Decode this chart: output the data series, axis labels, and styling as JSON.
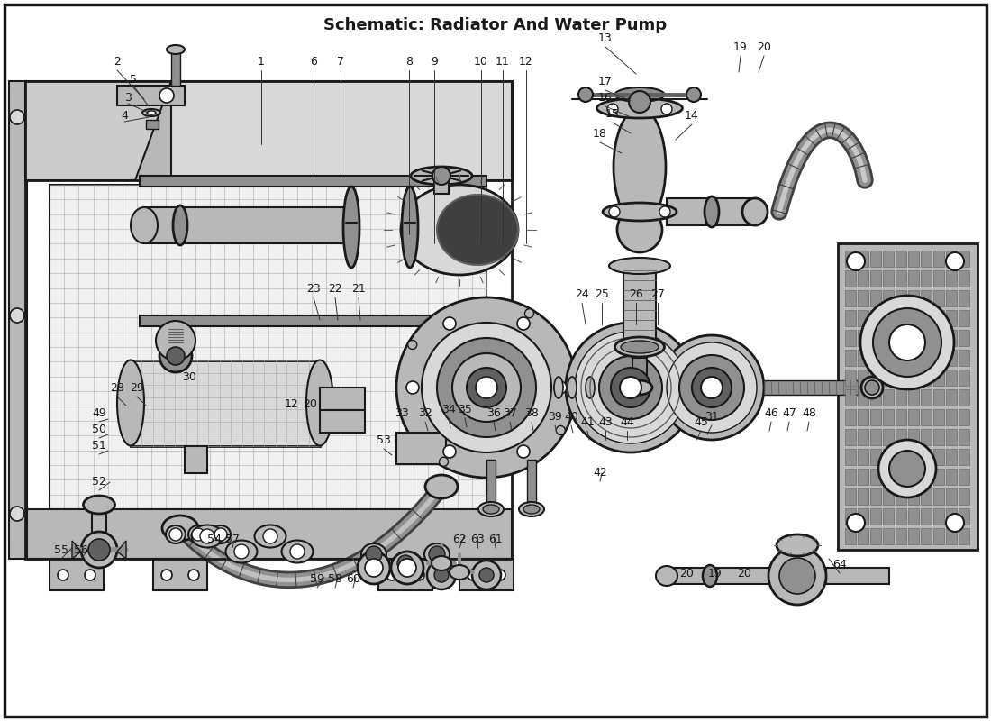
{
  "title": "Schematic: Radiator And Water Pump",
  "bg": "#ffffff",
  "lc": "#1a1a1a",
  "figsize": [
    11.0,
    8.0
  ],
  "dpi": 100,
  "labels": [
    [
      "2",
      130,
      68
    ],
    [
      "5",
      148,
      88
    ],
    [
      "3",
      142,
      108
    ],
    [
      "4",
      138,
      128
    ],
    [
      "1",
      290,
      68
    ],
    [
      "6",
      348,
      68
    ],
    [
      "7",
      378,
      68
    ],
    [
      "8",
      454,
      68
    ],
    [
      "9",
      482,
      68
    ],
    [
      "10",
      534,
      68
    ],
    [
      "11",
      558,
      68
    ],
    [
      "12",
      584,
      68
    ],
    [
      "13",
      672,
      42
    ],
    [
      "17",
      672,
      90
    ],
    [
      "16",
      672,
      108
    ],
    [
      "15",
      680,
      126
    ],
    [
      "14",
      768,
      128
    ],
    [
      "18",
      666,
      148
    ],
    [
      "19",
      822,
      52
    ],
    [
      "20",
      848,
      52
    ],
    [
      "24",
      646,
      326
    ],
    [
      "25",
      668,
      326
    ],
    [
      "26",
      706,
      326
    ],
    [
      "27",
      730,
      326
    ],
    [
      "23",
      348,
      320
    ],
    [
      "22",
      372,
      320
    ],
    [
      "21",
      398,
      320
    ],
    [
      "28",
      130,
      430
    ],
    [
      "29",
      152,
      430
    ],
    [
      "30",
      210,
      418
    ],
    [
      "49",
      110,
      458
    ],
    [
      "50",
      110,
      476
    ],
    [
      "51",
      110,
      494
    ],
    [
      "52",
      110,
      534
    ],
    [
      "12",
      324,
      448
    ],
    [
      "20",
      344,
      448
    ],
    [
      "33",
      446,
      458
    ],
    [
      "32",
      472,
      458
    ],
    [
      "53",
      426,
      488
    ],
    [
      "34",
      498,
      454
    ],
    [
      "35",
      516,
      454
    ],
    [
      "36",
      548,
      458
    ],
    [
      "37",
      566,
      458
    ],
    [
      "38",
      590,
      458
    ],
    [
      "39",
      616,
      462
    ],
    [
      "40",
      634,
      462
    ],
    [
      "41",
      652,
      468
    ],
    [
      "43",
      672,
      468
    ],
    [
      "44",
      696,
      468
    ],
    [
      "31",
      790,
      462
    ],
    [
      "45",
      778,
      468
    ],
    [
      "46",
      856,
      458
    ],
    [
      "47",
      876,
      458
    ],
    [
      "48",
      898,
      458
    ],
    [
      "42",
      666,
      524
    ],
    [
      "55",
      68,
      610
    ],
    [
      "56",
      90,
      610
    ],
    [
      "54",
      238,
      598
    ],
    [
      "57",
      258,
      598
    ],
    [
      "59",
      352,
      642
    ],
    [
      "58",
      372,
      642
    ],
    [
      "60",
      392,
      642
    ],
    [
      "62",
      510,
      598
    ],
    [
      "63",
      530,
      598
    ],
    [
      "61",
      550,
      598
    ],
    [
      "64",
      932,
      626
    ],
    [
      "20",
      762,
      636
    ],
    [
      "19",
      794,
      636
    ],
    [
      "20",
      826,
      636
    ]
  ],
  "leader_lines": [
    [
      130,
      78,
      160,
      110
    ],
    [
      148,
      95,
      165,
      118
    ],
    [
      142,
      115,
      165,
      125
    ],
    [
      138,
      135,
      165,
      130
    ],
    [
      290,
      78,
      290,
      160
    ],
    [
      348,
      78,
      348,
      195
    ],
    [
      378,
      78,
      378,
      195
    ],
    [
      454,
      78,
      454,
      260
    ],
    [
      482,
      78,
      482,
      270
    ],
    [
      534,
      78,
      534,
      270
    ],
    [
      558,
      78,
      558,
      270
    ],
    [
      584,
      78,
      584,
      270
    ],
    [
      672,
      52,
      706,
      82
    ],
    [
      768,
      138,
      750,
      155
    ],
    [
      680,
      136,
      700,
      148
    ],
    [
      672,
      118,
      700,
      130
    ],
    [
      672,
      100,
      700,
      112
    ],
    [
      666,
      158,
      690,
      170
    ],
    [
      822,
      62,
      820,
      80
    ],
    [
      848,
      62,
      842,
      80
    ],
    [
      646,
      336,
      650,
      360
    ],
    [
      668,
      336,
      668,
      360
    ],
    [
      706,
      336,
      706,
      360
    ],
    [
      730,
      336,
      730,
      360
    ],
    [
      348,
      330,
      355,
      355
    ],
    [
      372,
      330,
      375,
      355
    ],
    [
      398,
      330,
      400,
      355
    ],
    [
      130,
      440,
      140,
      450
    ],
    [
      152,
      440,
      162,
      450
    ],
    [
      110,
      468,
      120,
      465
    ],
    [
      110,
      486,
      120,
      482
    ],
    [
      110,
      504,
      120,
      500
    ],
    [
      110,
      544,
      122,
      535
    ],
    [
      446,
      468,
      452,
      480
    ],
    [
      472,
      468,
      475,
      478
    ],
    [
      426,
      498,
      435,
      505
    ],
    [
      498,
      464,
      500,
      475
    ],
    [
      516,
      464,
      518,
      474
    ],
    [
      548,
      468,
      550,
      478
    ],
    [
      566,
      468,
      568,
      478
    ],
    [
      590,
      468,
      592,
      478
    ],
    [
      616,
      472,
      618,
      480
    ],
    [
      634,
      472,
      636,
      480
    ],
    [
      652,
      478,
      654,
      488
    ],
    [
      672,
      478,
      672,
      488
    ],
    [
      696,
      478,
      696,
      488
    ],
    [
      790,
      472,
      785,
      482
    ],
    [
      778,
      478,
      773,
      488
    ],
    [
      856,
      468,
      854,
      478
    ],
    [
      876,
      468,
      874,
      478
    ],
    [
      898,
      468,
      896,
      478
    ],
    [
      666,
      534,
      668,
      525
    ],
    [
      68,
      620,
      80,
      608
    ],
    [
      90,
      620,
      98,
      610
    ],
    [
      238,
      608,
      245,
      600
    ],
    [
      258,
      608,
      260,
      600
    ],
    [
      352,
      652,
      360,
      640
    ],
    [
      372,
      652,
      375,
      640
    ],
    [
      392,
      652,
      395,
      640
    ],
    [
      510,
      608,
      515,
      595
    ],
    [
      530,
      608,
      530,
      595
    ],
    [
      550,
      608,
      548,
      595
    ],
    [
      932,
      636,
      920,
      620
    ]
  ]
}
